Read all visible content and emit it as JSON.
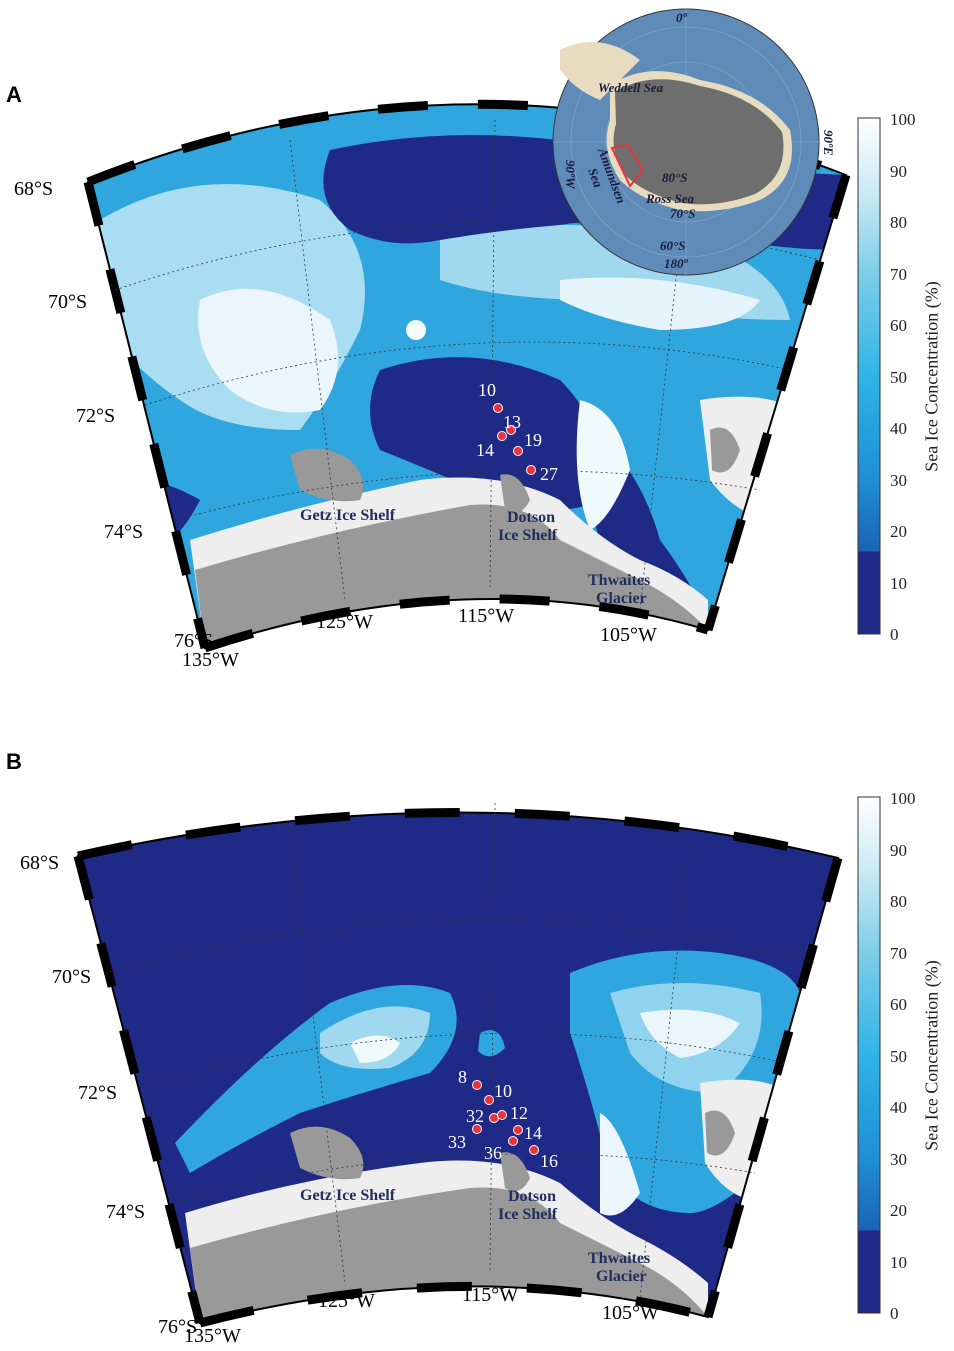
{
  "panels": [
    {
      "letter": "A",
      "latitude_labels": [
        "68°S",
        "70°S",
        "72°S",
        "74°S",
        "76°S"
      ],
      "longitude_labels": [
        "135°W",
        "125°W",
        "115°W",
        "105°W"
      ],
      "place_labels": {
        "getz": "Getz Ice Shelf",
        "dotson_1": "Dotson",
        "dotson_2": "Ice Shelf",
        "thwaites_1": "Thwaites",
        "thwaites_2": "Glacier"
      },
      "stations": [
        {
          "label": "10"
        },
        {
          "label": "13"
        },
        {
          "label": "14"
        },
        {
          "label": "19"
        },
        {
          "label": "27"
        }
      ],
      "inset": {
        "labels": {
          "top": "0º",
          "weddell": "Weddell Sea",
          "left": "90ºW",
          "right": "90ºE",
          "amundsen_1": "Amundsen",
          "amundsen_2": "Sea",
          "lat80": "80°S",
          "ross": "Ross Sea",
          "lat70": "70°S",
          "lat60": "60°S",
          "bottom": "180º"
        }
      },
      "colorbar": {
        "title": "Sea Ice Concentration (%)",
        "ticks": [
          "0",
          "10",
          "20",
          "30",
          "40",
          "50",
          "60",
          "70",
          "80",
          "90",
          "100"
        ]
      }
    },
    {
      "letter": "B",
      "latitude_labels": [
        "68°S",
        "70°S",
        "72°S",
        "74°S",
        "76°S"
      ],
      "longitude_labels": [
        "135°W",
        "125°W",
        "115°W",
        "105°W"
      ],
      "place_labels": {
        "getz": "Getz Ice Shelf",
        "dotson_1": "Dotson",
        "dotson_2": "Ice Shelf",
        "thwaites_1": "Thwaites",
        "thwaites_2": "Glacier"
      },
      "stations": [
        {
          "label": "8"
        },
        {
          "label": "10"
        },
        {
          "label": "32"
        },
        {
          "label": "12"
        },
        {
          "label": "33"
        },
        {
          "label": "14"
        },
        {
          "label": "36"
        },
        {
          "label": "16"
        }
      ],
      "colorbar": {
        "title": "Sea Ice Concentration (%)",
        "ticks": [
          "0",
          "10",
          "20",
          "30",
          "40",
          "50",
          "60",
          "70",
          "80",
          "90",
          "100"
        ]
      }
    }
  ],
  "colors": {
    "open_water": "#1f2a86",
    "ice_low": "#1d6fc0",
    "ice_mid": "#2fa9e0",
    "ice_high": "#8fd3ee",
    "ice_full": "#f4fbfd",
    "land": "#999999",
    "ice_shelf": "#eeeeee",
    "station": "#e8333e",
    "label_navy": "#1f2f5c"
  }
}
